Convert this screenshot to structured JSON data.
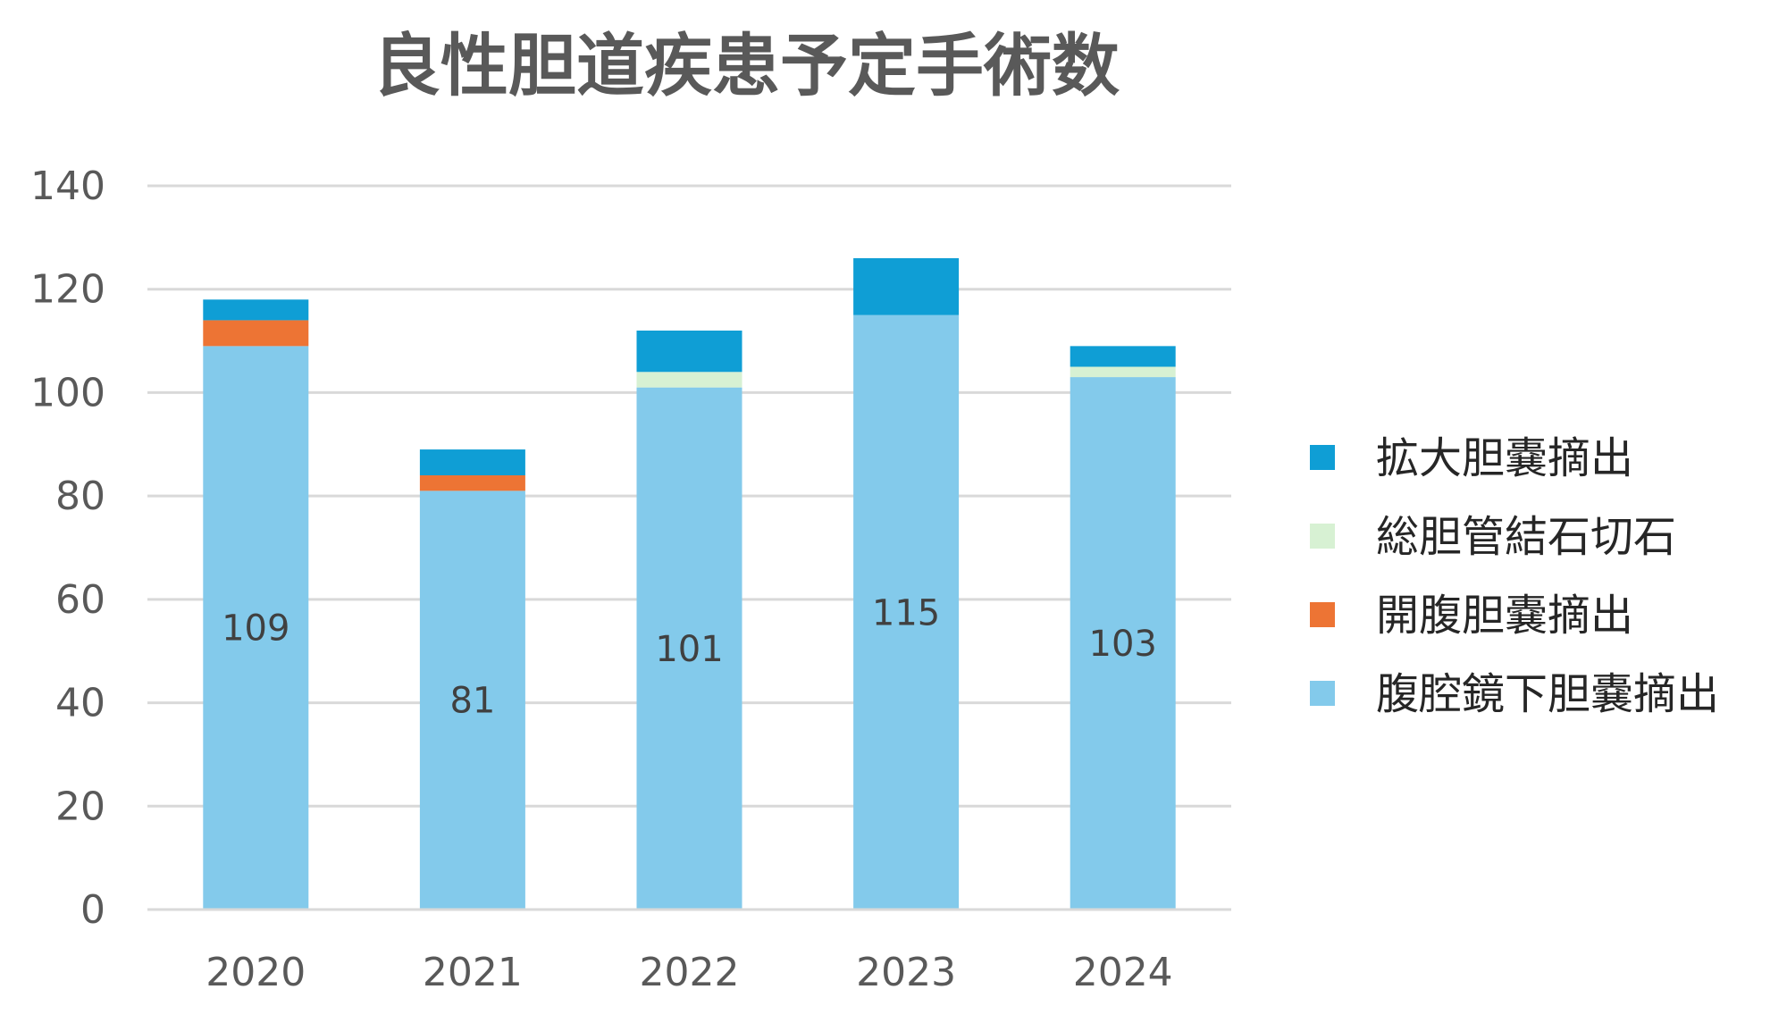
{
  "chart_data": {
    "type": "bar",
    "stacked": true,
    "title": "良性胆道疾患予定手術数",
    "xlabel": "",
    "ylabel": "",
    "categories": [
      "2020",
      "2021",
      "2022",
      "2023",
      "2024"
    ],
    "ylim": [
      0,
      140
    ],
    "yticks": [
      0,
      20,
      40,
      60,
      80,
      100,
      120,
      140
    ],
    "grid": true,
    "legend_position": "right",
    "series": [
      {
        "name": "腹腔鏡下胆嚢摘出",
        "color": "#83CAEB",
        "values": [
          109,
          81,
          101,
          115,
          103
        ],
        "show_labels": true
      },
      {
        "name": "開腹胆嚢摘出",
        "color": "#ED7434",
        "values": [
          5,
          3,
          0,
          0,
          0
        ]
      },
      {
        "name": "総胆管結石切石",
        "color": "#D7F1D3",
        "values": [
          0,
          0,
          3,
          0,
          2
        ]
      },
      {
        "name": "拡大胆嚢摘出",
        "color": "#0F9ED5",
        "values": [
          4,
          5,
          8,
          11,
          4
        ]
      }
    ],
    "legend_order": [
      "拡大胆嚢摘出",
      "総胆管結石切石",
      "開腹胆嚢摘出",
      "腹腔鏡下胆嚢摘出"
    ]
  }
}
